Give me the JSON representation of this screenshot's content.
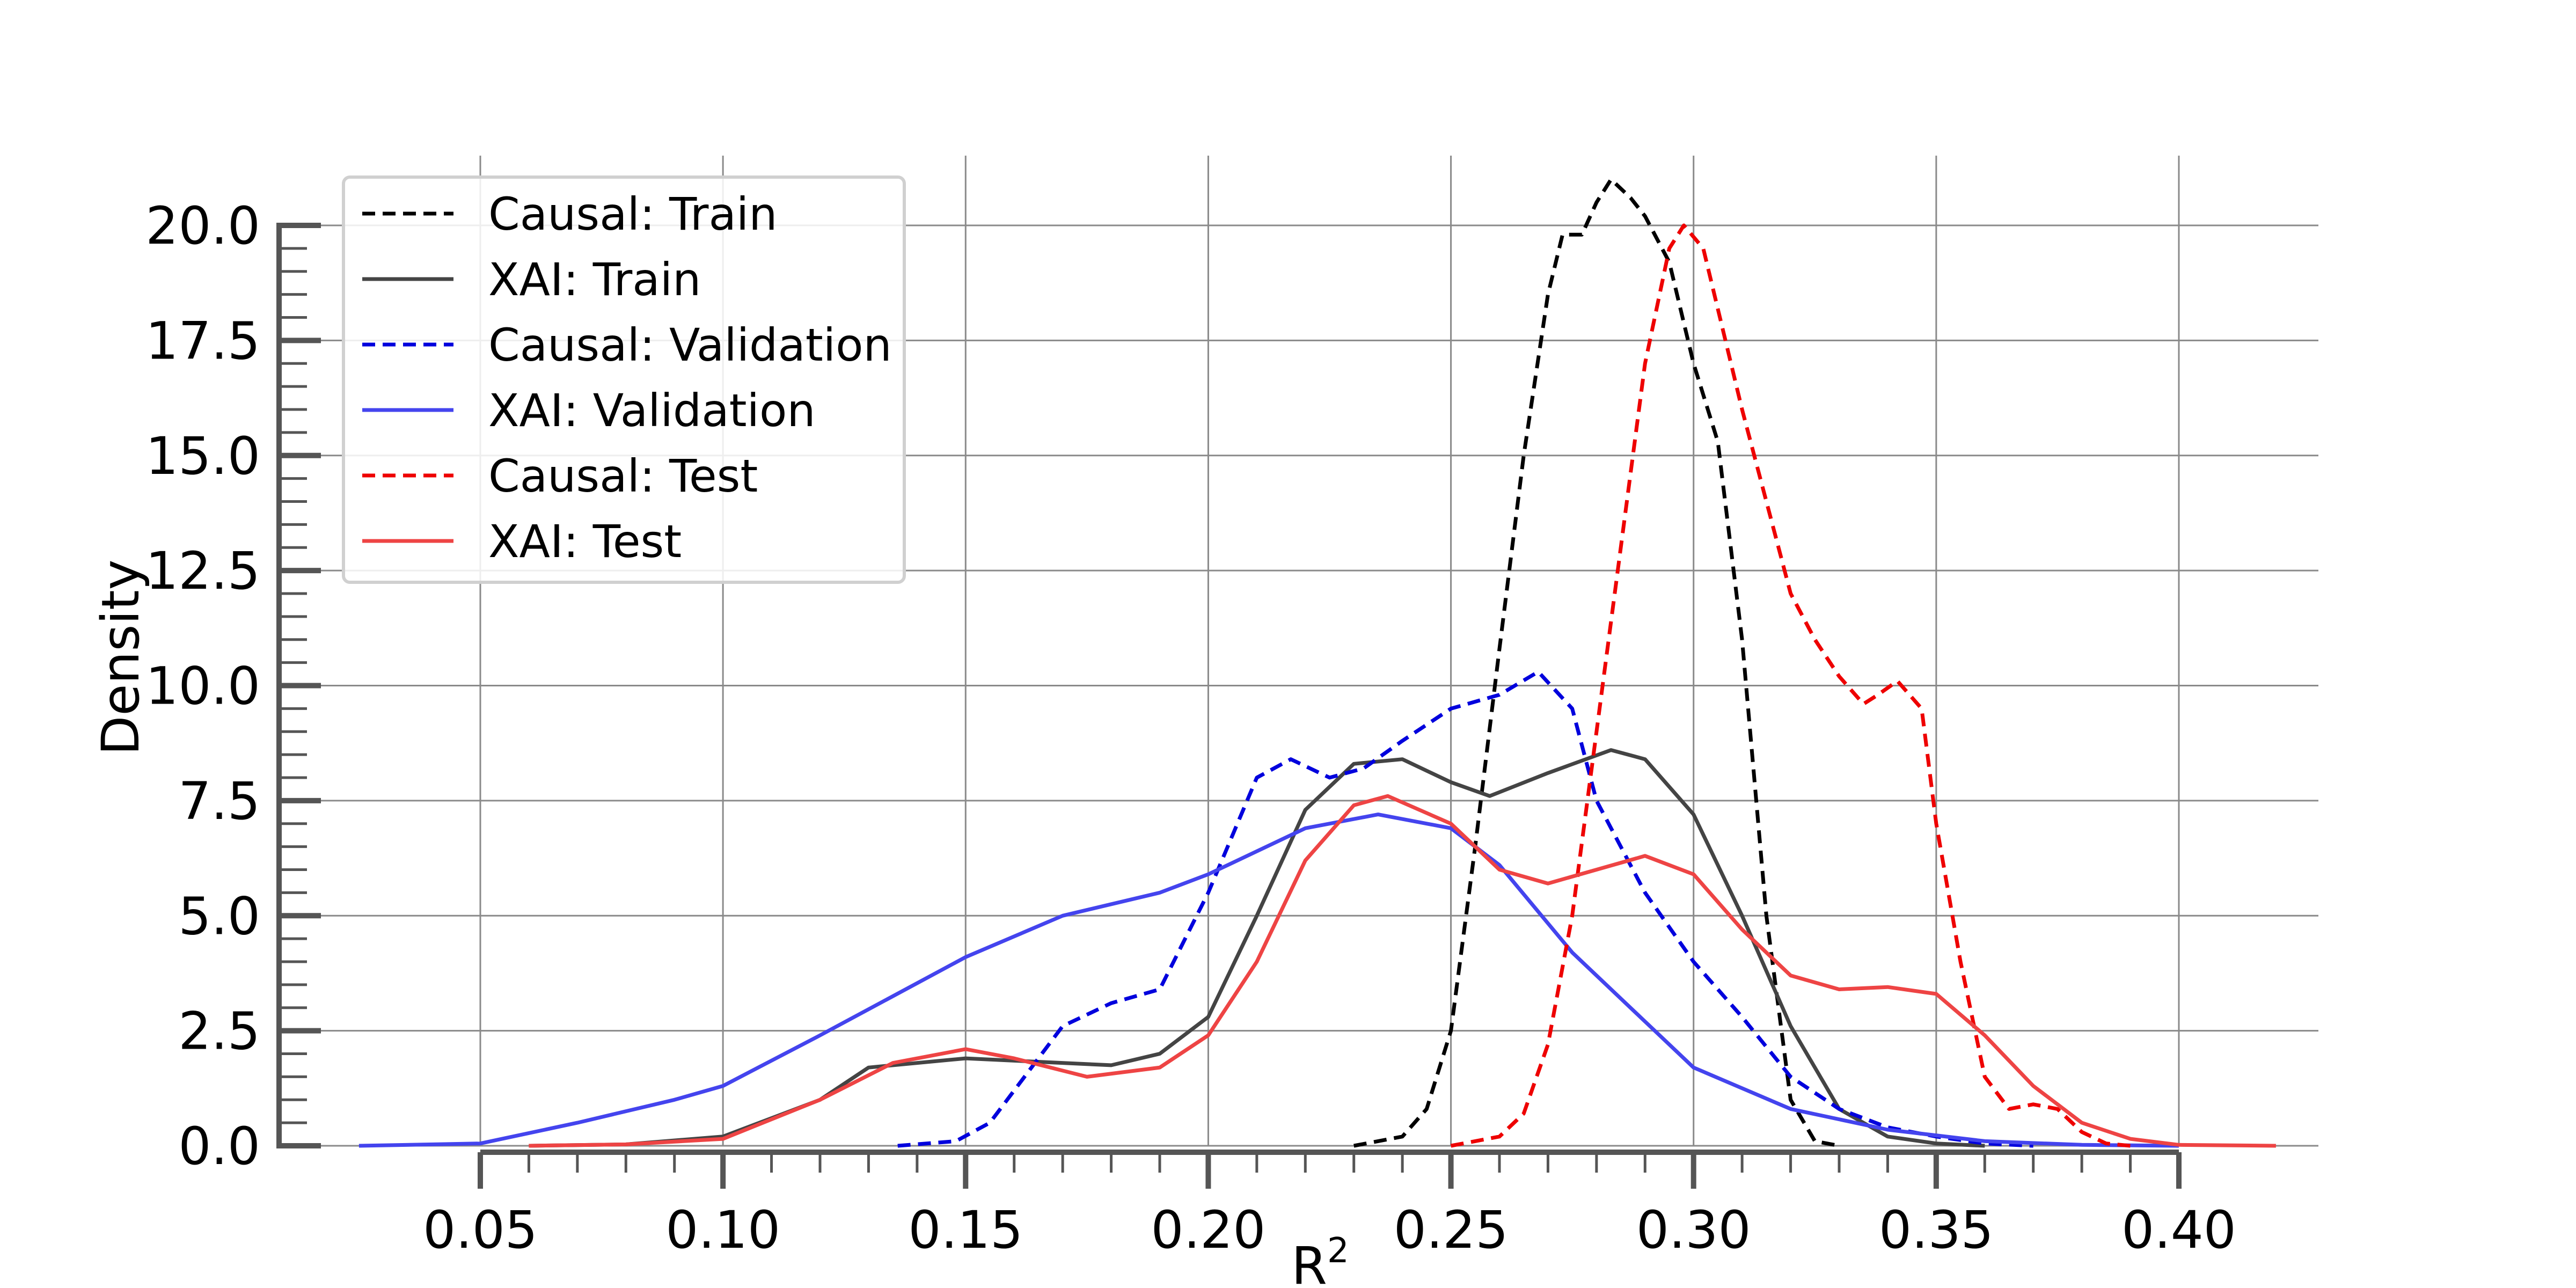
{
  "chart_data": {
    "type": "line",
    "title": "",
    "xlabel": "R",
    "xlabel_superscript": "2",
    "ylabel": "Density",
    "xlim": [
      0.05,
      0.4
    ],
    "ylim": [
      0,
      20
    ],
    "x_ticks": [
      "0.05",
      "0.10",
      "0.15",
      "0.20",
      "0.25",
      "0.30",
      "0.35",
      "0.40"
    ],
    "y_ticks": [
      "0.0",
      "2.5",
      "5.0",
      "7.5",
      "10.0",
      "12.5",
      "15.0",
      "17.5",
      "20.0"
    ],
    "grid": true,
    "legend_position": "top-left",
    "series": [
      {
        "name": "Causal: Train",
        "color": "#000000",
        "style": "dashed",
        "points": [
          [
            0.23,
            0.0
          ],
          [
            0.24,
            0.2
          ],
          [
            0.245,
            0.8
          ],
          [
            0.25,
            2.5
          ],
          [
            0.255,
            6.5
          ],
          [
            0.26,
            10.8
          ],
          [
            0.265,
            15.0
          ],
          [
            0.27,
            18.5
          ],
          [
            0.273,
            19.8
          ],
          [
            0.277,
            19.8
          ],
          [
            0.28,
            20.5
          ],
          [
            0.283,
            21.0
          ],
          [
            0.287,
            20.6
          ],
          [
            0.29,
            20.2
          ],
          [
            0.295,
            19.2
          ],
          [
            0.3,
            17.0
          ],
          [
            0.305,
            15.3
          ],
          [
            0.31,
            11.0
          ],
          [
            0.315,
            5.0
          ],
          [
            0.32,
            1.0
          ],
          [
            0.325,
            0.1
          ],
          [
            0.33,
            0.0
          ]
        ]
      },
      {
        "name": "XAI: Train",
        "color": "#444444",
        "style": "solid",
        "points": [
          [
            0.06,
            0.0
          ],
          [
            0.08,
            0.03
          ],
          [
            0.1,
            0.2
          ],
          [
            0.12,
            1.0
          ],
          [
            0.13,
            1.7
          ],
          [
            0.15,
            1.9
          ],
          [
            0.16,
            1.85
          ],
          [
            0.18,
            1.75
          ],
          [
            0.19,
            2.0
          ],
          [
            0.2,
            2.8
          ],
          [
            0.21,
            5.0
          ],
          [
            0.22,
            7.3
          ],
          [
            0.23,
            8.3
          ],
          [
            0.24,
            8.4
          ],
          [
            0.25,
            7.9
          ],
          [
            0.258,
            7.6
          ],
          [
            0.27,
            8.1
          ],
          [
            0.283,
            8.6
          ],
          [
            0.29,
            8.4
          ],
          [
            0.3,
            7.2
          ],
          [
            0.31,
            5.0
          ],
          [
            0.32,
            2.6
          ],
          [
            0.33,
            0.8
          ],
          [
            0.34,
            0.2
          ],
          [
            0.35,
            0.05
          ],
          [
            0.36,
            0.0
          ]
        ]
      },
      {
        "name": "Causal: Validation",
        "color": "#0000dd",
        "style": "dashed",
        "points": [
          [
            0.136,
            0.0
          ],
          [
            0.148,
            0.1
          ],
          [
            0.155,
            0.5
          ],
          [
            0.16,
            1.2
          ],
          [
            0.17,
            2.6
          ],
          [
            0.18,
            3.1
          ],
          [
            0.19,
            3.4
          ],
          [
            0.2,
            5.5
          ],
          [
            0.21,
            8.0
          ],
          [
            0.217,
            8.4
          ],
          [
            0.225,
            8.0
          ],
          [
            0.232,
            8.2
          ],
          [
            0.24,
            8.8
          ],
          [
            0.25,
            9.5
          ],
          [
            0.26,
            9.8
          ],
          [
            0.268,
            10.3
          ],
          [
            0.275,
            9.5
          ],
          [
            0.28,
            7.5
          ],
          [
            0.29,
            5.5
          ],
          [
            0.3,
            4.0
          ],
          [
            0.31,
            2.8
          ],
          [
            0.32,
            1.5
          ],
          [
            0.33,
            0.8
          ],
          [
            0.34,
            0.4
          ],
          [
            0.35,
            0.2
          ],
          [
            0.36,
            0.05
          ],
          [
            0.37,
            0.0
          ]
        ]
      },
      {
        "name": "XAI: Validation",
        "color": "#4444ee",
        "style": "solid",
        "points": [
          [
            0.025,
            0.0
          ],
          [
            0.05,
            0.05
          ],
          [
            0.07,
            0.5
          ],
          [
            0.09,
            1.0
          ],
          [
            0.1,
            1.3
          ],
          [
            0.12,
            2.4
          ],
          [
            0.15,
            4.1
          ],
          [
            0.17,
            5.0
          ],
          [
            0.19,
            5.5
          ],
          [
            0.2,
            5.9
          ],
          [
            0.22,
            6.9
          ],
          [
            0.235,
            7.2
          ],
          [
            0.25,
            6.9
          ],
          [
            0.26,
            6.1
          ],
          [
            0.275,
            4.2
          ],
          [
            0.29,
            2.7
          ],
          [
            0.3,
            1.7
          ],
          [
            0.32,
            0.8
          ],
          [
            0.34,
            0.35
          ],
          [
            0.36,
            0.1
          ],
          [
            0.38,
            0.02
          ],
          [
            0.4,
            0.0
          ]
        ]
      },
      {
        "name": "Causal: Test",
        "color": "#ee0000",
        "style": "dashed",
        "points": [
          [
            0.25,
            0.0
          ],
          [
            0.26,
            0.2
          ],
          [
            0.265,
            0.7
          ],
          [
            0.27,
            2.2
          ],
          [
            0.275,
            5.0
          ],
          [
            0.28,
            9.0
          ],
          [
            0.285,
            13.0
          ],
          [
            0.29,
            17.0
          ],
          [
            0.295,
            19.5
          ],
          [
            0.298,
            20.0
          ],
          [
            0.302,
            19.5
          ],
          [
            0.31,
            16.0
          ],
          [
            0.315,
            14.0
          ],
          [
            0.32,
            12.0
          ],
          [
            0.325,
            11.0
          ],
          [
            0.33,
            10.2
          ],
          [
            0.335,
            9.6
          ],
          [
            0.338,
            9.8
          ],
          [
            0.342,
            10.1
          ],
          [
            0.347,
            9.5
          ],
          [
            0.35,
            7.0
          ],
          [
            0.355,
            4.0
          ],
          [
            0.36,
            1.5
          ],
          [
            0.365,
            0.8
          ],
          [
            0.37,
            0.9
          ],
          [
            0.375,
            0.8
          ],
          [
            0.38,
            0.3
          ],
          [
            0.385,
            0.05
          ],
          [
            0.39,
            0.0
          ]
        ]
      },
      {
        "name": "XAI: Test",
        "color": "#ee4444",
        "style": "solid",
        "points": [
          [
            0.06,
            0.0
          ],
          [
            0.08,
            0.03
          ],
          [
            0.1,
            0.15
          ],
          [
            0.12,
            1.0
          ],
          [
            0.135,
            1.8
          ],
          [
            0.15,
            2.1
          ],
          [
            0.16,
            1.9
          ],
          [
            0.175,
            1.5
          ],
          [
            0.19,
            1.7
          ],
          [
            0.2,
            2.4
          ],
          [
            0.21,
            4.0
          ],
          [
            0.22,
            6.2
          ],
          [
            0.23,
            7.4
          ],
          [
            0.237,
            7.6
          ],
          [
            0.25,
            7.0
          ],
          [
            0.26,
            6.0
          ],
          [
            0.27,
            5.7
          ],
          [
            0.28,
            6.0
          ],
          [
            0.29,
            6.3
          ],
          [
            0.3,
            5.9
          ],
          [
            0.31,
            4.7
          ],
          [
            0.32,
            3.7
          ],
          [
            0.33,
            3.4
          ],
          [
            0.34,
            3.45
          ],
          [
            0.35,
            3.3
          ],
          [
            0.36,
            2.4
          ],
          [
            0.37,
            1.3
          ],
          [
            0.38,
            0.5
          ],
          [
            0.39,
            0.15
          ],
          [
            0.4,
            0.02
          ],
          [
            0.42,
            0.0
          ]
        ]
      }
    ]
  }
}
